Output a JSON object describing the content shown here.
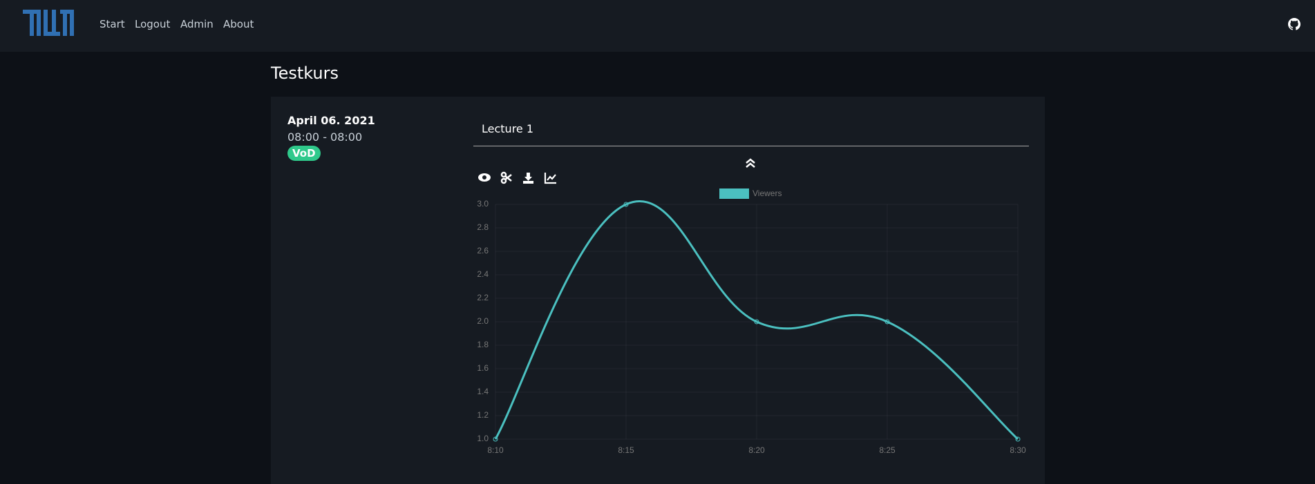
{
  "nav": {
    "links": [
      "Start",
      "Logout",
      "Admin",
      "About"
    ]
  },
  "course": {
    "title": "Testkurs"
  },
  "lecture": {
    "date": "April 06. 2021",
    "time": "08:00 - 08:00",
    "badge": "VoD",
    "title": "Lecture 1"
  },
  "chart_data": {
    "type": "line",
    "categories": [
      "8:10",
      "8:15",
      "8:20",
      "8:25",
      "8:30"
    ],
    "series": [
      {
        "name": "Viewers",
        "color": "#4bc0c0",
        "values": [
          1,
          3,
          2,
          2,
          1
        ]
      }
    ],
    "ylim": [
      1,
      3
    ],
    "yticks": [
      {
        "value": 1,
        "label": "1.0"
      },
      {
        "value": 1.2,
        "label": "1.2"
      },
      {
        "value": 1.4,
        "label": "1.4"
      },
      {
        "value": 1.6,
        "label": "1.6"
      },
      {
        "value": 1.8,
        "label": "1.8"
      },
      {
        "value": 2,
        "label": "2.0"
      },
      {
        "value": 2.2,
        "label": "2.2"
      },
      {
        "value": 2.4,
        "label": "2.4"
      },
      {
        "value": 2.6,
        "label": "2.6"
      },
      {
        "value": 2.8,
        "label": "2.8"
      },
      {
        "value": 3,
        "label": "3.0"
      }
    ],
    "grid": true
  }
}
